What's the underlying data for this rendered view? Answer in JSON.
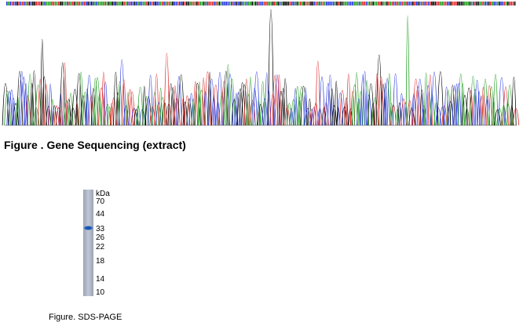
{
  "figure1": {
    "caption": "Figure . Gene Sequencing (extract)"
  },
  "figure2": {
    "caption": "Figure. SDS-PAGE",
    "unit": "kDa",
    "markers": [
      "70",
      "44",
      "33",
      "26",
      "22",
      "18",
      "14",
      "10"
    ]
  }
}
